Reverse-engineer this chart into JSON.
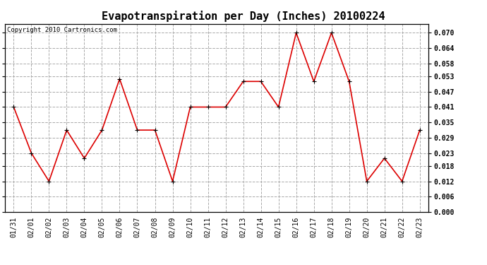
{
  "title": "Evapotranspiration per Day (Inches) 20100224",
  "copyright_text": "Copyright 2010 Cartronics.com",
  "dates": [
    "01/31",
    "02/01",
    "02/02",
    "02/03",
    "02/04",
    "02/05",
    "02/06",
    "02/07",
    "02/08",
    "02/09",
    "02/10",
    "02/11",
    "02/12",
    "02/13",
    "02/14",
    "02/15",
    "02/16",
    "02/17",
    "02/18",
    "02/19",
    "02/20",
    "02/21",
    "02/22",
    "02/23"
  ],
  "values": [
    0.041,
    0.023,
    0.012,
    0.032,
    0.021,
    0.032,
    0.052,
    0.032,
    0.032,
    0.012,
    0.041,
    0.041,
    0.041,
    0.051,
    0.051,
    0.041,
    0.07,
    0.051,
    0.07,
    0.051,
    0.012,
    0.021,
    0.012,
    0.032
  ],
  "line_color": "#dd0000",
  "marker": "+",
  "marker_size": 5,
  "marker_color": "#000000",
  "ylim": [
    0.0,
    0.0735
  ],
  "yticks": [
    0.0,
    0.006,
    0.012,
    0.018,
    0.023,
    0.029,
    0.035,
    0.041,
    0.047,
    0.053,
    0.058,
    0.064,
    0.07
  ],
  "grid_color": "#aaaaaa",
  "grid_style": "--",
  "background_color": "#ffffff",
  "border_color": "#000000",
  "title_fontsize": 11,
  "copyright_fontsize": 6.5,
  "tick_fontsize": 7,
  "line_width": 1.2
}
